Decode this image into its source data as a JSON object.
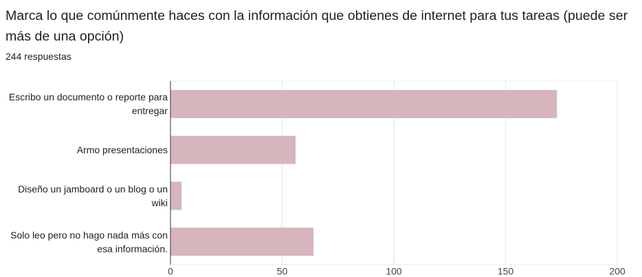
{
  "chart_data": {
    "type": "barh",
    "title": "Marca lo que comúnmente haces con la información que obtienes de internet para tus tareas (puede ser más de una opción)",
    "subtitle": "244 respuestas",
    "categories": [
      "Escribo un documento o reporte para entregar",
      "Armo presentaciones",
      "Diseño un jamboard o un blog o un wiki",
      "Solo leo pero no hago nada más con esa información."
    ],
    "values": [
      173,
      56,
      5,
      64
    ],
    "color": "#d7b5bd",
    "xlim": [
      0,
      200
    ],
    "xticks": [
      0,
      50,
      100,
      150,
      200
    ],
    "grid": true
  }
}
